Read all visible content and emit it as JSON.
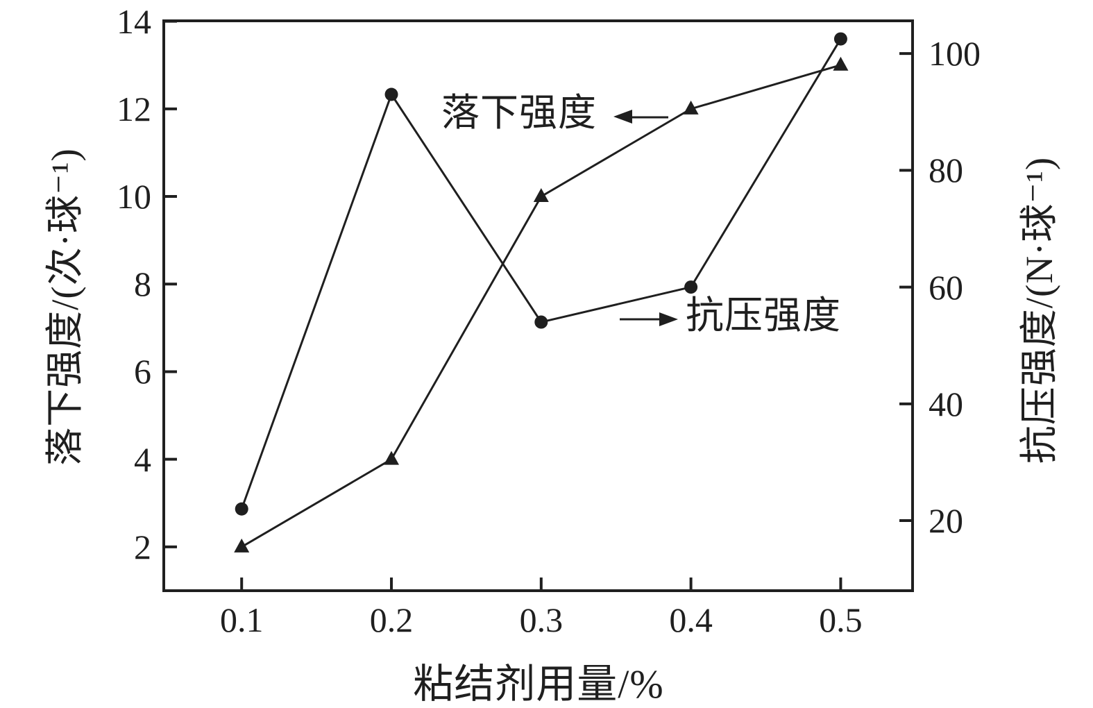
{
  "figure": {
    "background": "#ffffff",
    "ink_color": "#1f1f1f"
  },
  "chart_data": {
    "type": "line",
    "title": "",
    "xlabel": "粘结剂用量/%",
    "x": [
      0.1,
      0.2,
      0.3,
      0.4,
      0.5
    ],
    "x_tick_labels": [
      "0.1",
      "0.2",
      "0.3",
      "0.4",
      "0.5"
    ],
    "xlim": [
      0.048,
      0.548
    ],
    "grid": false,
    "legend_position": "none",
    "left_axis": {
      "label": "落下强度/(次·球⁻¹)",
      "ticks": [
        2,
        4,
        6,
        8,
        10,
        12,
        14
      ],
      "ylim": [
        1,
        14.01
      ]
    },
    "right_axis": {
      "label": "抗压强度/(N·球⁻¹)",
      "ticks": [
        20,
        40,
        60,
        80,
        100
      ],
      "ylim": [
        8,
        105.6
      ]
    },
    "series": [
      {
        "key": "drop-strength",
        "name": "落下强度",
        "axis": "left",
        "marker": "triangle",
        "color": "#1f1f1f",
        "values": [
          2.0,
          4.0,
          10.0,
          12.0,
          13.0
        ]
      },
      {
        "key": "compressive-strength",
        "name": "抗压强度",
        "axis": "right",
        "marker": "circle",
        "color": "#1f1f1f",
        "values": [
          22,
          93,
          54,
          60,
          102.5
        ]
      }
    ],
    "annotations": [
      {
        "text": "落下强度",
        "series": "drop-strength",
        "arrow_direction": "left"
      },
      {
        "text": "抗压强度",
        "series": "compressive-strength",
        "arrow_direction": "right"
      }
    ]
  }
}
